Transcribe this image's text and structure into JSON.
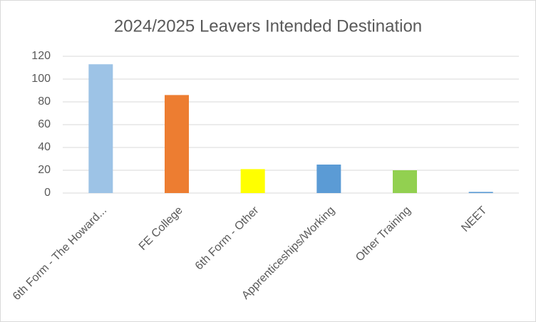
{
  "chart_data": {
    "type": "bar",
    "title": "2024/2025 Leavers Intended Destination",
    "categories": [
      "6th Form - The Howard...",
      "FE College",
      "6th Form - Other",
      "Apprenticeships/Working",
      "Other Training",
      "NEET"
    ],
    "values": [
      113,
      86,
      21,
      25,
      20,
      1
    ],
    "colors": [
      "#9dc3e6",
      "#ed7d31",
      "#ffff00",
      "#5b9bd5",
      "#92d050",
      "#5b9bd5"
    ],
    "ylim": [
      0,
      120
    ],
    "yticks": [
      0,
      20,
      40,
      60,
      80,
      100,
      120
    ],
    "grid": true
  }
}
